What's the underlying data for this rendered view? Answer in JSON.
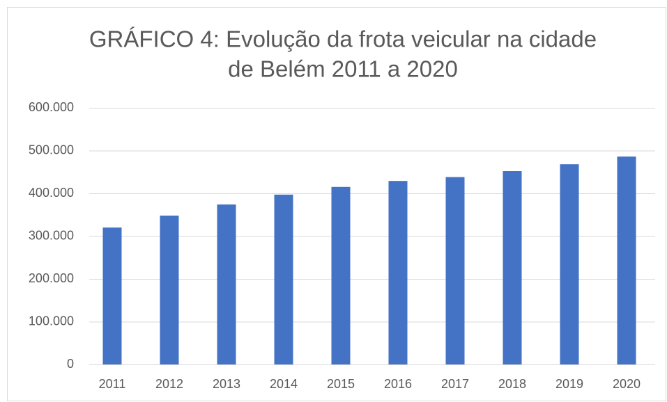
{
  "chart_data": {
    "type": "bar",
    "title": [
      "GRÁFICO 4: Evolução da frota veicular na cidade",
      "de Belém 2011 a 2020"
    ],
    "categories": [
      "2011",
      "2012",
      "2013",
      "2014",
      "2015",
      "2016",
      "2017",
      "2018",
      "2019",
      "2020"
    ],
    "values": [
      320000,
      348000,
      374000,
      397000,
      415000,
      429000,
      438000,
      452000,
      468000,
      486000
    ],
    "color": "#4472c4",
    "ylim": [
      0,
      600000
    ],
    "yticks": [
      0,
      {
        "value": 100000,
        "label": "100.000"
      },
      {
        "value": 200000,
        "label": "200.000"
      },
      {
        "value": 300000,
        "label": "300.000"
      },
      {
        "value": 400000,
        "label": "400.000"
      },
      {
        "value": 500000,
        "label": "500.000"
      },
      {
        "value": 600000,
        "label": "600.000"
      }
    ],
    "grid": true
  }
}
